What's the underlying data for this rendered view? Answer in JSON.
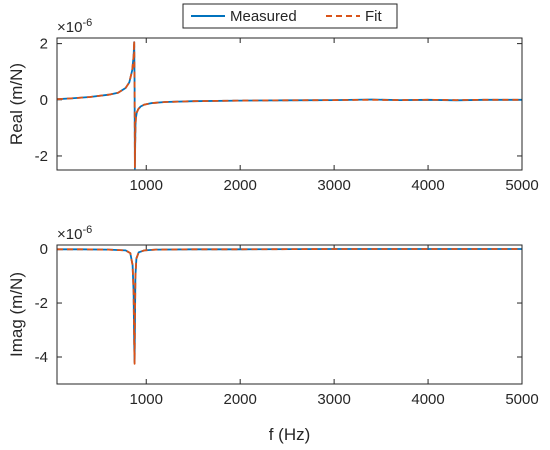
{
  "colors": {
    "measured": "#0072BD",
    "fit": "#D95319",
    "axis": "#262626",
    "background": "#ffffff"
  },
  "legend": {
    "placement": "top-center",
    "items": [
      {
        "label": "Measured",
        "style": "solid",
        "color": "#0072BD"
      },
      {
        "label": "Fit",
        "style": "dashed",
        "color": "#D95319"
      }
    ]
  },
  "chart_data": [
    {
      "type": "line",
      "ylabel": "Real (m/N)",
      "xlabel": "",
      "exponent_label": "×10",
      "exponent_power": "-6",
      "xlim": [
        50,
        5000
      ],
      "ylim": [
        -2.5,
        2.2
      ],
      "x_ticks": [
        1000,
        2000,
        3000,
        4000,
        5000
      ],
      "x_tick_labels": [
        "1000",
        "2000",
        "3000",
        "4000",
        "5000"
      ],
      "y_ticks": [
        -2,
        0,
        2
      ],
      "y_tick_labels": [
        "-2",
        "0",
        "2"
      ],
      "grid": false,
      "series": [
        {
          "name": "Measured",
          "x": [
            50,
            200,
            400,
            600,
            700,
            780,
            820,
            850,
            865,
            872,
            876,
            879,
            882,
            886,
            890,
            900,
            915,
            940,
            980,
            1050,
            1200,
            1500,
            2000,
            2500,
            3000,
            3400,
            3700,
            4000,
            4300,
            4600,
            5000
          ],
          "y": [
            0.02,
            0.05,
            0.1,
            0.18,
            0.25,
            0.42,
            0.62,
            1.05,
            1.55,
            2.05,
            0.5,
            -2.45,
            -1.5,
            -0.9,
            -0.65,
            -0.45,
            -0.33,
            -0.24,
            -0.17,
            -0.12,
            -0.08,
            -0.05,
            -0.03,
            -0.02,
            -0.01,
            0.01,
            -0.01,
            0.0,
            -0.02,
            0.0,
            0.0
          ]
        },
        {
          "name": "Fit",
          "x": [
            50,
            200,
            400,
            600,
            700,
            780,
            820,
            850,
            865,
            872,
            876,
            879,
            882,
            886,
            890,
            900,
            915,
            940,
            980,
            1050,
            1200,
            1500,
            2000,
            2500,
            3000,
            3400,
            3700,
            4000,
            4300,
            4600,
            5000
          ],
          "y": [
            0.02,
            0.05,
            0.1,
            0.18,
            0.25,
            0.42,
            0.62,
            1.05,
            1.55,
            2.1,
            0.5,
            -2.4,
            -1.5,
            -0.9,
            -0.65,
            -0.45,
            -0.33,
            -0.24,
            -0.17,
            -0.12,
            -0.08,
            -0.05,
            -0.03,
            -0.02,
            -0.01,
            0.0,
            -0.01,
            0.0,
            -0.01,
            0.0,
            0.0
          ]
        }
      ]
    },
    {
      "type": "line",
      "ylabel": "Imag (m/N)",
      "xlabel": "f (Hz)",
      "exponent_label": "×10",
      "exponent_power": "-6",
      "xlim": [
        50,
        5000
      ],
      "ylim": [
        -5,
        0.15
      ],
      "x_ticks": [
        1000,
        2000,
        3000,
        4000,
        5000
      ],
      "x_tick_labels": [
        "1000",
        "2000",
        "3000",
        "4000",
        "5000"
      ],
      "y_ticks": [
        -4,
        -2,
        0
      ],
      "y_tick_labels": [
        "-4",
        "-2",
        "0"
      ],
      "grid": false,
      "series": [
        {
          "name": "Measured",
          "x": [
            50,
            300,
            600,
            780,
            830,
            855,
            865,
            872,
            876,
            880,
            885,
            895,
            920,
            980,
            1100,
            1500,
            2000,
            3000,
            4000,
            5000
          ],
          "y": [
            -0.01,
            -0.01,
            -0.02,
            -0.05,
            -0.15,
            -0.6,
            -1.6,
            -3.5,
            -4.2,
            -2.5,
            -1.0,
            -0.35,
            -0.12,
            -0.05,
            -0.02,
            -0.01,
            -0.01,
            0.0,
            0.0,
            0.0
          ]
        },
        {
          "name": "Fit",
          "x": [
            50,
            300,
            600,
            780,
            830,
            855,
            865,
            872,
            876,
            880,
            885,
            895,
            920,
            980,
            1100,
            1500,
            2000,
            3000,
            4000,
            5000
          ],
          "y": [
            -0.01,
            -0.01,
            -0.02,
            -0.05,
            -0.15,
            -0.6,
            -1.6,
            -3.5,
            -4.25,
            -2.5,
            -1.0,
            -0.35,
            -0.12,
            -0.05,
            -0.02,
            -0.01,
            -0.01,
            0.0,
            0.0,
            0.0
          ]
        }
      ]
    }
  ]
}
